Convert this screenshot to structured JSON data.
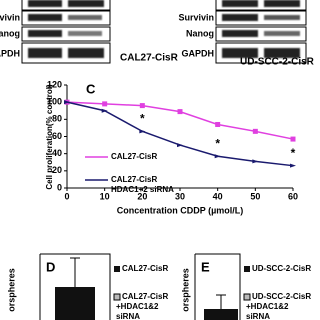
{
  "blots": {
    "left": {
      "labels": [
        "Survivin",
        "Nanog",
        "GAPDH"
      ],
      "caption": "CAL27-CisR"
    },
    "right": {
      "labels": [
        "Survivin",
        "Nanog",
        "GAPDH"
      ],
      "caption": "UD-SCC-2-CisR"
    }
  },
  "chart_data": {
    "type": "line",
    "panel_letter": "C",
    "x_label": "Concentration CDDP (µmol/L)",
    "y_label": "Cell proliferation(% control)",
    "x": [
      0,
      10,
      20,
      30,
      40,
      50,
      60
    ],
    "series": [
      {
        "name": "CAL27-CisR",
        "color": "#e040e0",
        "values": [
          100,
          98,
          96,
          89,
          74,
          66,
          57
        ]
      },
      {
        "name": "CAL27-CisR HDAC1+2 siRNA",
        "name_lines": [
          "CAL27-CisR",
          "HDAC1+2 siRNA"
        ],
        "color": "#1a1a6e",
        "values": [
          100,
          90,
          66,
          50,
          37,
          31,
          26
        ]
      }
    ],
    "annotations": [
      {
        "x": 20,
        "text": "*"
      },
      {
        "x": 40,
        "text": "*"
      },
      {
        "x": 60,
        "text": "*"
      }
    ],
    "xlim": [
      0,
      60
    ],
    "xticks": [
      0,
      10,
      20,
      30,
      40,
      50,
      60
    ],
    "ylim": [
      0,
      120
    ],
    "yticks": [
      0,
      20,
      40,
      60,
      80,
      100,
      120
    ]
  },
  "panels": [
    {
      "letter": "D",
      "y_label": "orspheres",
      "legend": [
        "CAL27-CisR",
        "CAL27-CisR",
        "+HDAC1&2",
        "siRNA"
      ]
    },
    {
      "letter": "E",
      "y_label": "orspheres",
      "legend": [
        "UD-SCC-2-CisR",
        "UD-SCC-2-CisR",
        "+HDAC1&2",
        "siRNA"
      ]
    }
  ]
}
